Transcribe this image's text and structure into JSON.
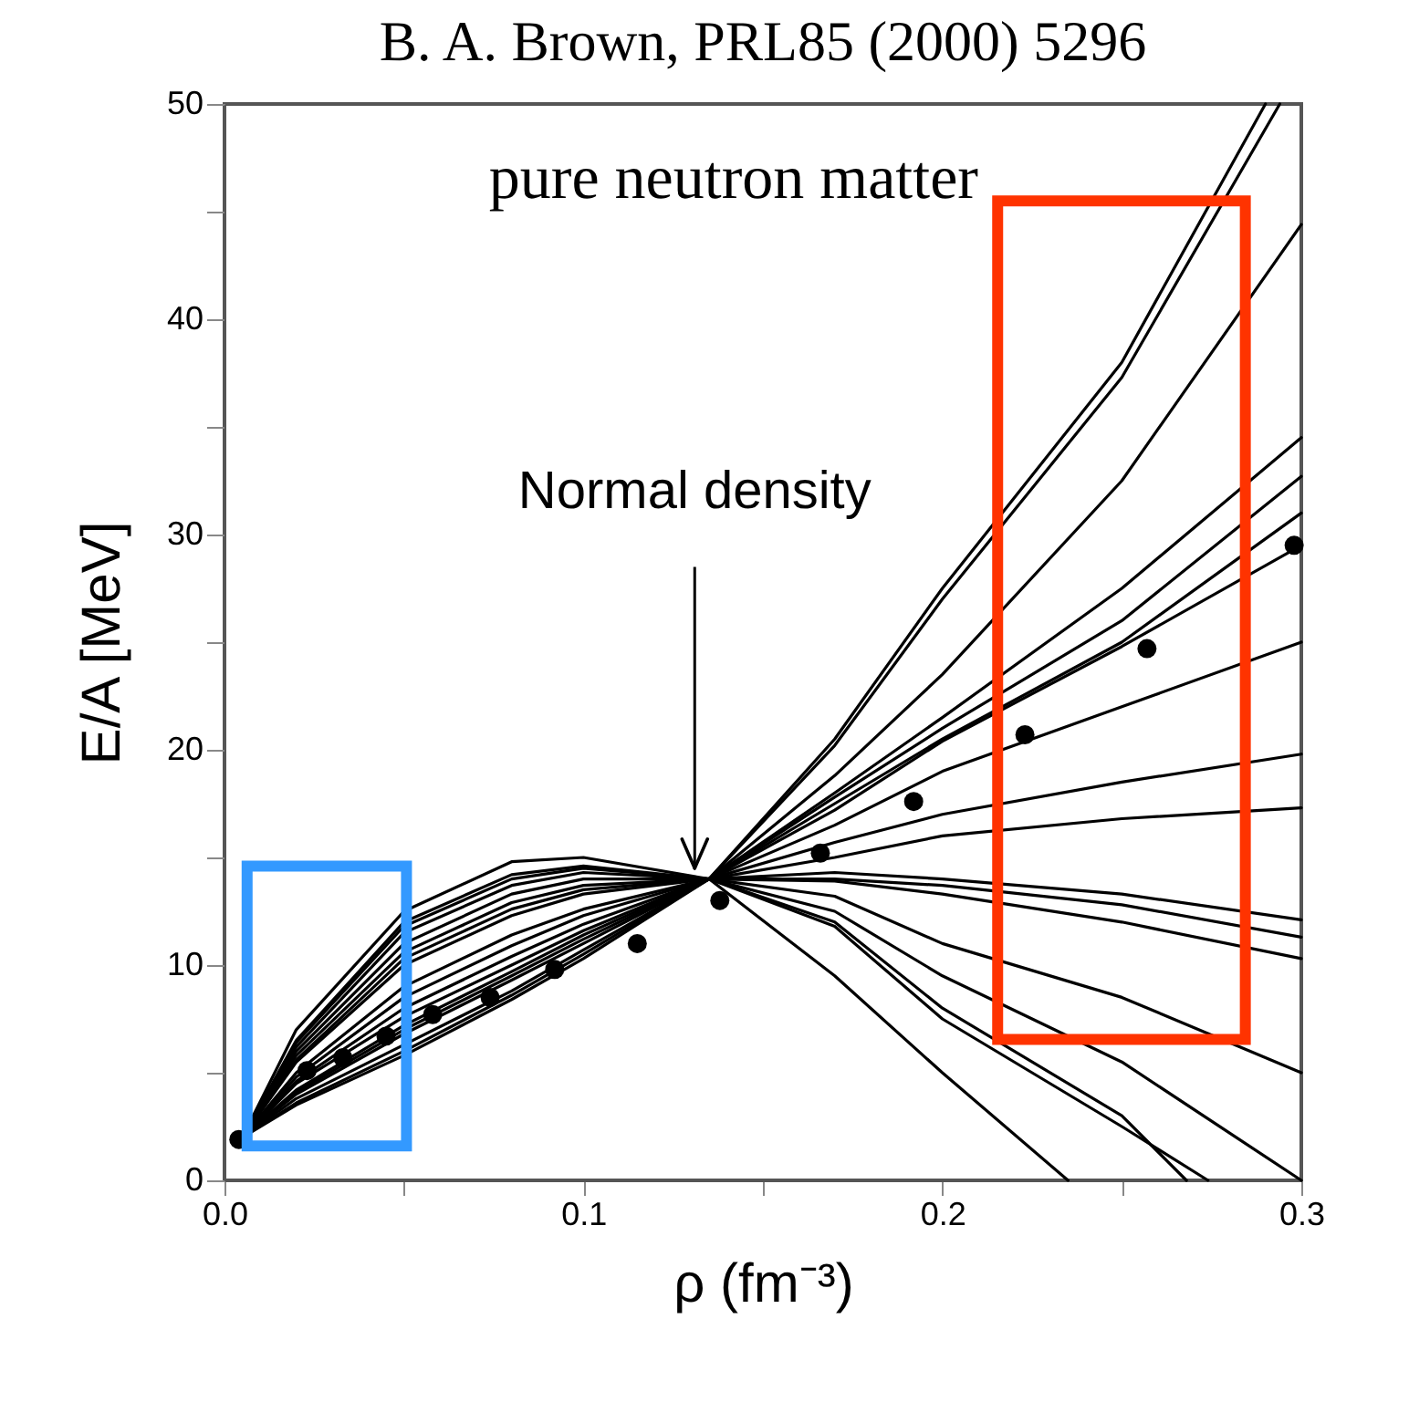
{
  "chart_data": {
    "type": "line",
    "title": "B. A. Brown, PRL85 (2000) 5296",
    "xlabel": "ρ (fm⁻³)",
    "ylabel": "E/A [MeV]",
    "annotations": [
      "pure neutron matter",
      {
        "text": "Normal density",
        "x": 0.131,
        "y": 14.5
      }
    ],
    "x": [
      0.005,
      0.02,
      0.05,
      0.08,
      0.1,
      0.135,
      0.17,
      0.2,
      0.25,
      0.3
    ],
    "series": [
      {
        "color": "#000000",
        "x": [
          0.005,
          0.02,
          0.05,
          0.08,
          0.1,
          0.135,
          0.17,
          0.2,
          0.25,
          0.29
        ],
        "values": [
          2,
          3.6,
          6,
          8.6,
          10.5,
          14,
          20.5,
          27.5,
          38,
          50
        ]
      },
      {
        "color": "#000000",
        "x": [
          0.005,
          0.02,
          0.05,
          0.08,
          0.1,
          0.135,
          0.17,
          0.2,
          0.25,
          0.294
        ],
        "values": [
          2,
          3.5,
          5.8,
          8.4,
          10.3,
          14,
          20.2,
          27,
          37.3,
          50
        ]
      },
      {
        "color": "#000000",
        "values": [
          2,
          3.8,
          6.3,
          8.8,
          10.7,
          14,
          18.8,
          23.5,
          32.5,
          44.4
        ]
      },
      {
        "color": "#000000",
        "values": [
          2,
          4,
          6.8,
          9.3,
          11,
          14,
          18,
          21.5,
          27.5,
          34.5
        ]
      },
      {
        "color": "#000000",
        "values": [
          2,
          4.1,
          7,
          9.5,
          11.2,
          14,
          17.8,
          21,
          26,
          32.7
        ]
      },
      {
        "color": "#000000",
        "values": [
          2,
          4.2,
          7.2,
          9.7,
          11.4,
          14,
          17.5,
          20.5,
          25,
          31
        ]
      },
      {
        "color": "#000000",
        "values": [
          2,
          4.5,
          7.6,
          10,
          11.6,
          14,
          17.2,
          20.4,
          24.8,
          29.5
        ]
      },
      {
        "color": "#000000",
        "values": [
          2,
          4.6,
          8,
          10.4,
          11.9,
          14,
          16.5,
          19,
          22,
          25
        ]
      },
      {
        "color": "#000000",
        "values": [
          2,
          4.8,
          8.5,
          10.9,
          12.3,
          14,
          15.7,
          17,
          18.5,
          19.8
        ]
      },
      {
        "color": "#000000",
        "values": [
          2,
          5,
          9,
          11.4,
          12.6,
          14,
          15,
          16,
          16.8,
          17.3
        ]
      },
      {
        "color": "#000000",
        "values": [
          2,
          5.5,
          10,
          12.3,
          13.3,
          14,
          14.3,
          14,
          13.3,
          12.1
        ]
      },
      {
        "color": "#000000",
        "values": [
          2,
          5.6,
          10.3,
          12.6,
          13.5,
          14,
          14,
          13.7,
          12.8,
          11.3
        ]
      },
      {
        "color": "#000000",
        "values": [
          2,
          5.8,
          10.6,
          12.9,
          13.7,
          14,
          13.9,
          13.3,
          12,
          10.3
        ]
      },
      {
        "color": "#000000",
        "values": [
          2,
          6,
          11,
          13.3,
          14,
          14,
          13.2,
          11,
          8.5,
          5
        ]
      },
      {
        "color": "#000000",
        "values": [
          2,
          6.2,
          11.5,
          13.7,
          14.3,
          14,
          12.5,
          9.5,
          5.5,
          0
        ]
      },
      {
        "color": "#000000",
        "x": [
          0.005,
          0.02,
          0.05,
          0.08,
          0.1,
          0.135,
          0.17,
          0.2,
          0.25,
          0.268
        ],
        "values": [
          2,
          6.4,
          11.8,
          14,
          14.5,
          14,
          12,
          8,
          3,
          0
        ]
      },
      {
        "color": "#000000",
        "x": [
          0.005,
          0.02,
          0.05,
          0.08,
          0.1,
          0.135,
          0.17,
          0.2,
          0.25,
          0.274
        ],
        "values": [
          2,
          6.5,
          12,
          14.2,
          14.6,
          14,
          11.8,
          7.5,
          2.5,
          0
        ]
      },
      {
        "color": "#000000",
        "x": [
          0.005,
          0.02,
          0.05,
          0.08,
          0.1,
          0.135,
          0.17,
          0.2,
          0.235
        ],
        "values": [
          2,
          7,
          12.5,
          14.8,
          15,
          14,
          9.5,
          5,
          0
        ]
      },
      {
        "type": "scatter",
        "marker": "circle",
        "color": "#000000",
        "x": [
          0.004,
          0.023,
          0.033,
          0.045,
          0.058,
          0.074,
          0.092,
          0.115,
          0.138,
          0.166,
          0.192,
          0.223,
          0.257,
          0.298
        ],
        "values": [
          1.9,
          5.1,
          5.7,
          6.7,
          7.7,
          8.5,
          9.8,
          11,
          13,
          15.2,
          17.6,
          20.7,
          24.7,
          29.5
        ]
      }
    ],
    "xlim": [
      0,
      0.3
    ],
    "ylim": [
      0,
      50
    ],
    "xticks": [
      {
        "value": 0,
        "label": "0.0"
      },
      {
        "value": 0.05,
        "label": null
      },
      0.1,
      {
        "value": 0.15,
        "label": null
      },
      0.2,
      {
        "value": 0.25,
        "label": null
      },
      0.3
    ],
    "yticks": [
      0,
      {
        "value": 5,
        "label": null
      },
      10,
      {
        "value": 15,
        "label": null
      },
      20,
      {
        "value": 25,
        "label": null
      },
      30,
      {
        "value": 35,
        "label": null
      },
      40,
      {
        "value": 45,
        "label": null
      },
      50
    ],
    "grid": false
  }
}
